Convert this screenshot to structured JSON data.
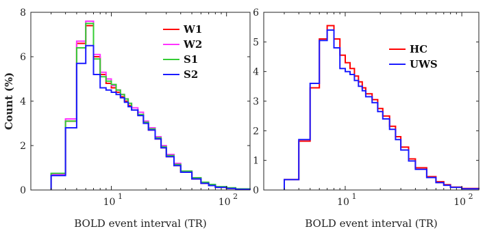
{
  "chart_data": [
    {
      "type": "line",
      "step": true,
      "x_scale": "log",
      "xlim": [
        2,
        160
      ],
      "ylim": [
        0,
        8
      ],
      "yticks": [
        0,
        2,
        4,
        6,
        8
      ],
      "xticks": [
        {
          "value": 10,
          "base": "10",
          "exp": "1"
        },
        {
          "value": 100,
          "base": "10",
          "exp": "2"
        }
      ],
      "xlabel": "BOLD event interval (TR)",
      "ylabel": "Count (%)",
      "legend_position": "top-right",
      "series": [
        {
          "name": "W1",
          "color": "#ff0000",
          "x": [
            3,
            4,
            5,
            6,
            7,
            8,
            9,
            10,
            11,
            12,
            13,
            14,
            15,
            17,
            19,
            21,
            24,
            27,
            30,
            35,
            40,
            50,
            60,
            70,
            80,
            100,
            120,
            160
          ],
          "y": [
            0.7,
            3.1,
            6.6,
            7.4,
            6.0,
            5.2,
            4.8,
            4.6,
            4.4,
            4.2,
            4.0,
            3.8,
            3.6,
            3.4,
            3.0,
            2.7,
            2.3,
            1.9,
            1.5,
            1.1,
            0.8,
            0.5,
            0.3,
            0.2,
            0.12,
            0.07,
            0.03,
            0.01
          ]
        },
        {
          "name": "W2",
          "color": "#ff33ff",
          "x": [
            3,
            4,
            5,
            6,
            7,
            8,
            9,
            10,
            11,
            12,
            13,
            14,
            15,
            17,
            19,
            21,
            24,
            27,
            30,
            35,
            40,
            50,
            60,
            70,
            80,
            100,
            120,
            160
          ],
          "y": [
            0.7,
            3.2,
            6.7,
            7.6,
            6.1,
            5.3,
            5.0,
            4.7,
            4.5,
            4.3,
            4.1,
            3.9,
            3.7,
            3.5,
            3.1,
            2.8,
            2.4,
            2.0,
            1.6,
            1.2,
            0.85,
            0.55,
            0.33,
            0.22,
            0.13,
            0.08,
            0.04,
            0.01
          ]
        },
        {
          "name": "S1",
          "color": "#33cc33",
          "x": [
            3,
            4,
            5,
            6,
            7,
            8,
            9,
            10,
            11,
            12,
            13,
            14,
            15,
            17,
            19,
            21,
            24,
            27,
            30,
            35,
            40,
            50,
            60,
            70,
            80,
            100,
            120,
            160
          ],
          "y": [
            0.75,
            3.1,
            6.4,
            7.5,
            5.9,
            5.1,
            4.9,
            4.75,
            4.5,
            4.3,
            4.1,
            3.9,
            3.6,
            3.4,
            3.05,
            2.75,
            2.35,
            1.95,
            1.55,
            1.15,
            0.85,
            0.55,
            0.35,
            0.25,
            0.15,
            0.1,
            0.05,
            0.02
          ]
        },
        {
          "name": "S2",
          "color": "#1a1aff",
          "x": [
            3,
            4,
            5,
            6,
            7,
            8,
            9,
            10,
            11,
            12,
            13,
            14,
            15,
            17,
            19,
            21,
            24,
            27,
            30,
            35,
            40,
            50,
            60,
            70,
            80,
            100,
            120,
            160
          ],
          "y": [
            0.65,
            2.8,
            5.7,
            6.5,
            5.2,
            4.6,
            4.5,
            4.4,
            4.3,
            4.15,
            3.95,
            3.75,
            3.6,
            3.35,
            3.0,
            2.7,
            2.3,
            1.9,
            1.5,
            1.1,
            0.8,
            0.5,
            0.3,
            0.2,
            0.12,
            0.07,
            0.03,
            0.01
          ]
        }
      ]
    },
    {
      "type": "line",
      "step": true,
      "x_scale": "log",
      "xlim": [
        2,
        140
      ],
      "ylim": [
        0,
        6
      ],
      "yticks": [
        0,
        1,
        2,
        3,
        4,
        5,
        6
      ],
      "xticks": [
        {
          "value": 10,
          "base": "10",
          "exp": "1"
        },
        {
          "value": 100,
          "base": "10",
          "exp": "2"
        }
      ],
      "xlabel": "BOLD event interval (TR)",
      "ylabel": "",
      "legend_position": "top-right",
      "series": [
        {
          "name": "HC",
          "color": "#ff0000",
          "x": [
            3,
            4,
            5,
            6,
            7,
            8,
            9,
            10,
            11,
            12,
            13,
            14,
            15,
            17,
            19,
            21,
            24,
            27,
            30,
            35,
            40,
            50,
            60,
            70,
            80,
            100,
            140
          ],
          "y": [
            0.35,
            1.65,
            3.45,
            5.1,
            5.55,
            5.1,
            4.55,
            4.3,
            4.1,
            3.85,
            3.65,
            3.45,
            3.25,
            3.05,
            2.75,
            2.5,
            2.15,
            1.8,
            1.45,
            1.05,
            0.75,
            0.45,
            0.28,
            0.18,
            0.1,
            0.05,
            0.02
          ]
        },
        {
          "name": "UWS",
          "color": "#1a1aff",
          "x": [
            3,
            4,
            5,
            6,
            7,
            8,
            9,
            10,
            11,
            12,
            13,
            14,
            15,
            17,
            19,
            21,
            24,
            27,
            30,
            35,
            40,
            50,
            60,
            70,
            80,
            100,
            140
          ],
          "y": [
            0.35,
            1.7,
            3.6,
            5.05,
            5.4,
            4.8,
            4.1,
            4.0,
            3.9,
            3.7,
            3.5,
            3.35,
            3.15,
            2.95,
            2.65,
            2.4,
            2.05,
            1.7,
            1.35,
            0.98,
            0.7,
            0.42,
            0.25,
            0.16,
            0.09,
            0.04,
            0.02
          ]
        }
      ]
    }
  ]
}
